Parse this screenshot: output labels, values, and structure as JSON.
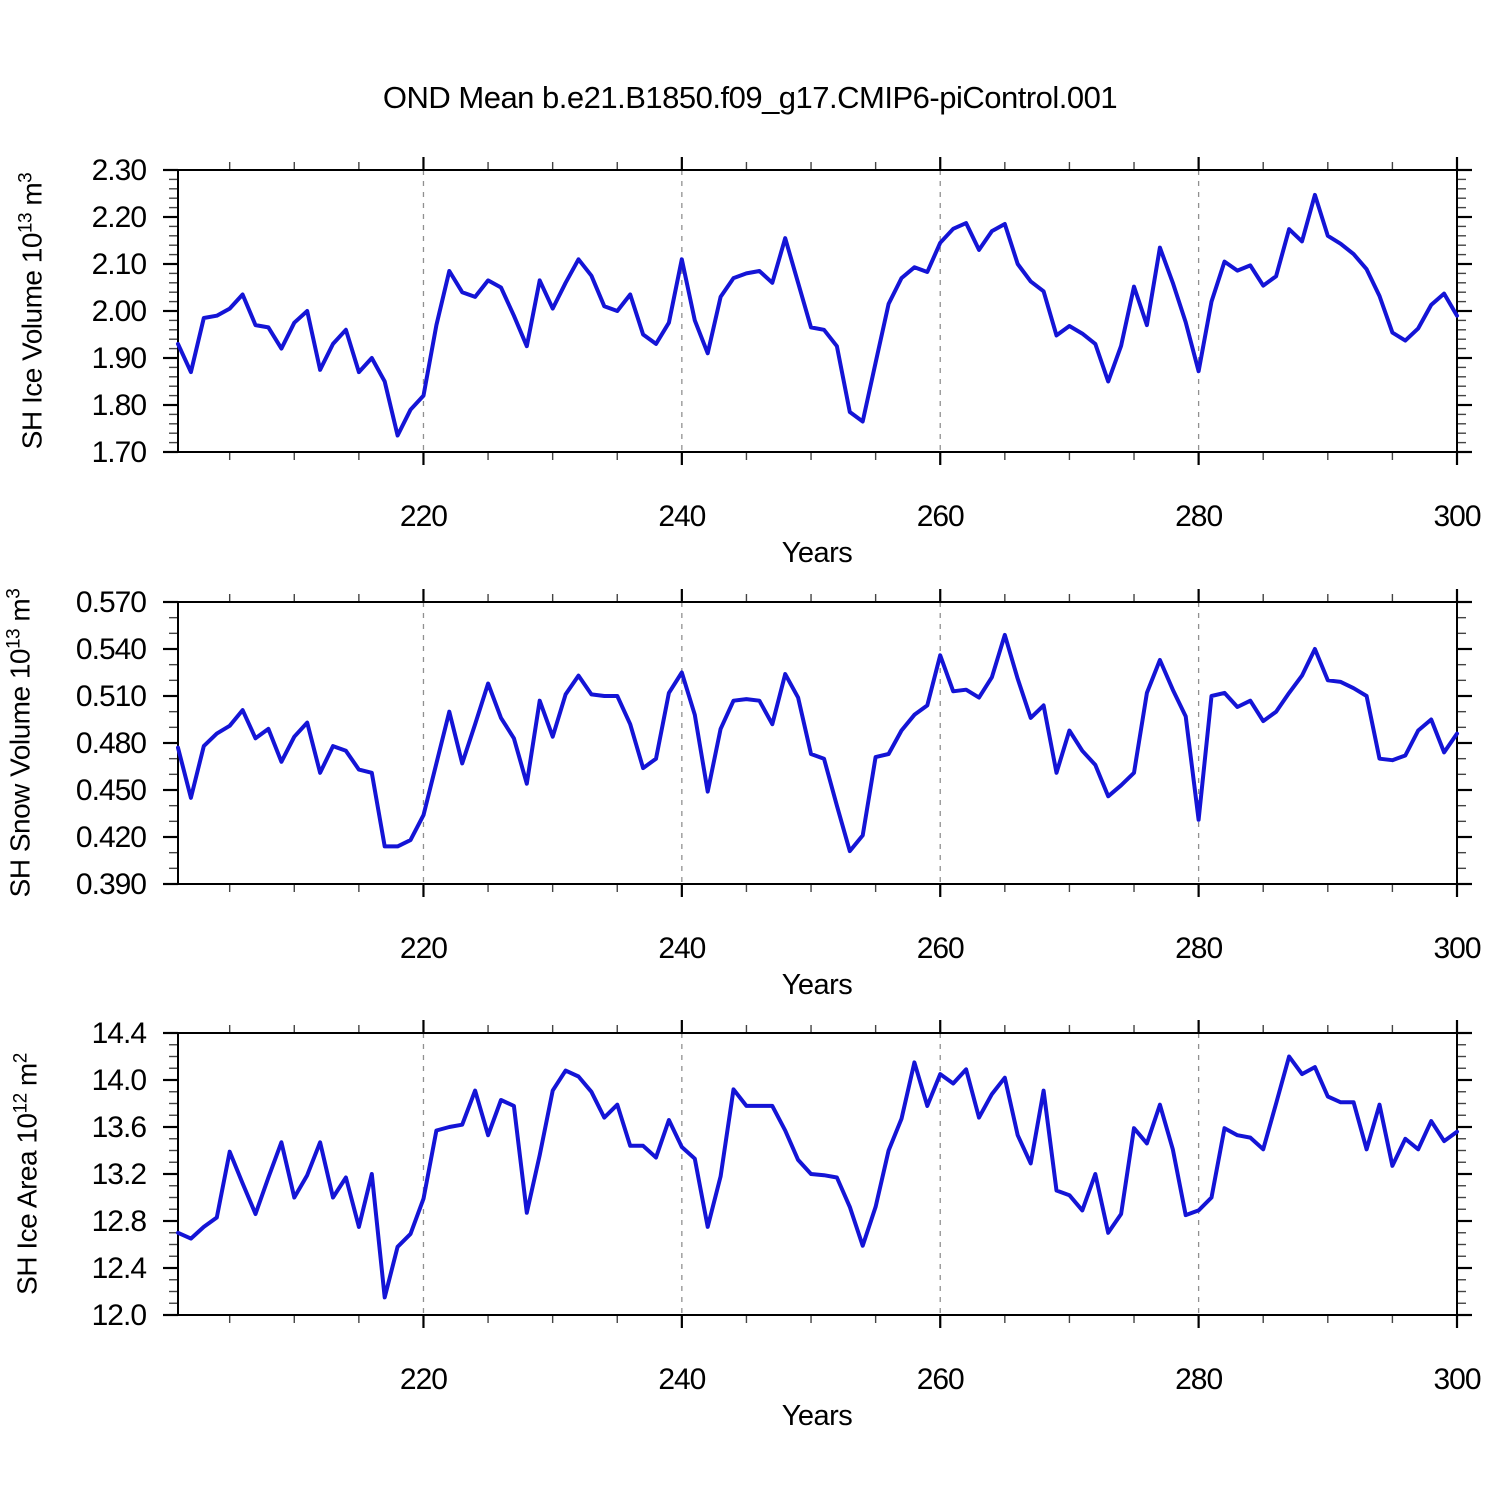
{
  "title": "OND Mean b.e21.B1850.f09_g17.CMIP6-piControl.001",
  "style": {
    "line_color": "#1414d6",
    "axis_color": "#000000",
    "minor_tick_color": "#444444",
    "grid_color": "#909090",
    "background": "#ffffff"
  },
  "x_axis": {
    "label": "Years",
    "major_ticks": [
      220,
      240,
      260,
      280,
      300
    ],
    "minor_step": 5,
    "range": [
      201,
      300
    ],
    "gridlines": [
      220,
      240,
      260,
      280
    ],
    "years": [
      201,
      202,
      203,
      204,
      205,
      206,
      207,
      208,
      209,
      210,
      211,
      212,
      213,
      214,
      215,
      216,
      217,
      218,
      219,
      220,
      221,
      222,
      223,
      224,
      225,
      226,
      227,
      228,
      229,
      230,
      231,
      232,
      233,
      234,
      235,
      236,
      237,
      238,
      239,
      240,
      241,
      242,
      243,
      244,
      245,
      246,
      247,
      248,
      249,
      250,
      251,
      252,
      253,
      254,
      255,
      256,
      257,
      258,
      259,
      260,
      261,
      262,
      263,
      264,
      265,
      266,
      267,
      268,
      269,
      270,
      271,
      272,
      273,
      274,
      275,
      276,
      277,
      278,
      279,
      280,
      281,
      282,
      283,
      284,
      285,
      286,
      287,
      288,
      289,
      290,
      291,
      292,
      293,
      294,
      295,
      296,
      297,
      298,
      299,
      300
    ]
  },
  "chart_data": [
    {
      "type": "line",
      "ylabel": "SH Ice Volume 10^13 m^3",
      "ylabel_parts": [
        "SH Ice Volume 10",
        "13",
        " m",
        "3"
      ],
      "xlabel": "Years",
      "ylim": [
        1.7,
        2.3
      ],
      "ytick_step": 0.1,
      "yminor_step": 0.02,
      "ytick_labels": [
        "2.30",
        "2.20",
        "2.10",
        "2.00",
        "1.90",
        "1.80",
        "1.70"
      ],
      "values": [
        1.93,
        1.87,
        1.985,
        1.99,
        2.005,
        2.035,
        1.97,
        1.965,
        1.92,
        1.975,
        2.0,
        1.875,
        1.93,
        1.96,
        1.87,
        1.9,
        1.85,
        1.735,
        1.79,
        1.82,
        1.97,
        2.085,
        2.04,
        2.03,
        2.065,
        2.05,
        1.99,
        1.925,
        2.065,
        2.005,
        2.06,
        2.11,
        2.075,
        2.01,
        2.0,
        2.035,
        1.95,
        1.93,
        1.975,
        2.11,
        1.98,
        1.91,
        2.03,
        2.07,
        2.08,
        2.085,
        2.06,
        2.155,
        2.06,
        1.965,
        1.96,
        1.925,
        1.785,
        1.765,
        1.89,
        2.015,
        2.07,
        2.093,
        2.083,
        2.145,
        2.175,
        2.187,
        2.13,
        2.17,
        2.185,
        2.1,
        2.063,
        2.042,
        1.948,
        1.968,
        1.952,
        1.93,
        1.85,
        1.926,
        2.052,
        1.97,
        2.135,
        2.06,
        1.976,
        1.872,
        2.02,
        2.105,
        2.086,
        2.097,
        2.054,
        2.074,
        2.174,
        2.148,
        2.247,
        2.16,
        2.143,
        2.121,
        2.089,
        2.032,
        1.954,
        1.937,
        1.963,
        2.013,
        2.037,
        1.99
      ]
    },
    {
      "type": "line",
      "ylabel": "SH Snow Volume 10^13 m^3",
      "ylabel_parts": [
        "SH Snow Volume 10",
        "13",
        " m",
        "3"
      ],
      "xlabel": "Years",
      "ylim": [
        0.39,
        0.57
      ],
      "ytick_step": 0.03,
      "yminor_step": 0.01,
      "ytick_labels": [
        "0.570",
        "0.540",
        "0.510",
        "0.480",
        "0.450",
        "0.420",
        "0.390"
      ],
      "values": [
        0.477,
        0.445,
        0.478,
        0.486,
        0.491,
        0.501,
        0.483,
        0.489,
        0.468,
        0.484,
        0.493,
        0.461,
        0.478,
        0.475,
        0.463,
        0.461,
        0.414,
        0.414,
        0.418,
        0.434,
        0.467,
        0.5,
        0.467,
        0.492,
        0.518,
        0.496,
        0.483,
        0.454,
        0.507,
        0.484,
        0.511,
        0.523,
        0.511,
        0.51,
        0.51,
        0.492,
        0.464,
        0.47,
        0.512,
        0.525,
        0.498,
        0.449,
        0.489,
        0.507,
        0.508,
        0.507,
        0.492,
        0.524,
        0.509,
        0.473,
        0.47,
        0.44,
        0.411,
        0.421,
        0.471,
        0.473,
        0.488,
        0.498,
        0.504,
        0.536,
        0.513,
        0.514,
        0.509,
        0.522,
        0.549,
        0.521,
        0.496,
        0.504,
        0.461,
        0.488,
        0.475,
        0.466,
        0.446,
        0.453,
        0.461,
        0.512,
        0.533,
        0.514,
        0.497,
        0.431,
        0.51,
        0.512,
        0.503,
        0.507,
        0.494,
        0.5,
        0.512,
        0.523,
        0.54,
        0.52,
        0.519,
        0.515,
        0.51,
        0.47,
        0.469,
        0.472,
        0.488,
        0.495,
        0.474,
        0.486
      ]
    },
    {
      "type": "line",
      "ylabel": "SH Ice Area 10^12 m^2",
      "ylabel_parts": [
        "SH Ice Area 10",
        "12",
        " m",
        "2"
      ],
      "xlabel": "Years",
      "ylim": [
        12.0,
        14.4
      ],
      "ytick_step": 0.4,
      "yminor_step": 0.1,
      "ytick_labels": [
        "14.4",
        "14.0",
        "13.6",
        "13.2",
        "12.8",
        "12.4",
        "12.0"
      ],
      "values": [
        12.7,
        12.65,
        12.75,
        12.83,
        13.39,
        13.12,
        12.86,
        13.17,
        13.47,
        13.0,
        13.19,
        13.47,
        13.0,
        13.17,
        12.75,
        13.2,
        12.15,
        12.58,
        12.69,
        12.99,
        13.57,
        13.6,
        13.62,
        13.91,
        13.53,
        13.83,
        13.78,
        12.87,
        13.36,
        13.91,
        14.08,
        14.03,
        13.9,
        13.68,
        13.79,
        13.44,
        13.44,
        13.34,
        13.66,
        13.43,
        13.33,
        12.75,
        13.18,
        13.92,
        13.78,
        13.78,
        13.78,
        13.57,
        13.32,
        13.2,
        13.19,
        13.17,
        12.92,
        12.59,
        12.92,
        13.4,
        13.67,
        14.15,
        13.78,
        14.05,
        13.97,
        14.09,
        13.68,
        13.88,
        14.02,
        13.53,
        13.29,
        13.91,
        13.06,
        13.02,
        12.89,
        13.2,
        12.7,
        12.86,
        13.59,
        13.46,
        13.79,
        13.41,
        12.85,
        12.89,
        13.0,
        13.59,
        13.53,
        13.51,
        13.41,
        13.8,
        14.2,
        14.05,
        14.11,
        13.86,
        13.81,
        13.81,
        13.41,
        13.79,
        13.27,
        13.5,
        13.41,
        13.65,
        13.48,
        13.56
      ]
    }
  ]
}
